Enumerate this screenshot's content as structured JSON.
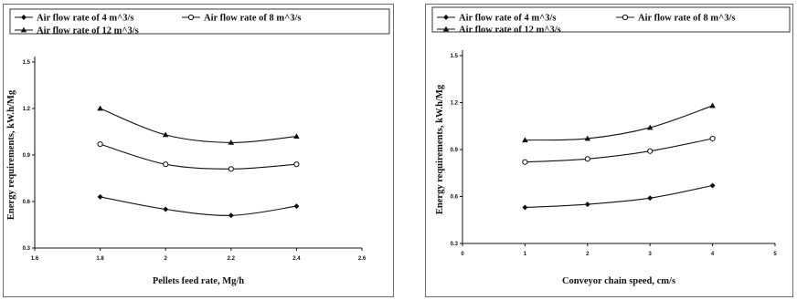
{
  "chart_data": [
    {
      "type": "line",
      "title": "",
      "xlabel": "Pellets feed rate, Mg/h",
      "ylabel": "Energy requirements, kW.h/Mg",
      "xlim": [
        1.6,
        2.6
      ],
      "ylim": [
        0.3,
        1.5
      ],
      "xticks": [
        "1.6",
        "1.8",
        "2",
        "2.2",
        "2.4",
        "2.6"
      ],
      "yticks": [
        "0.3",
        "0.6",
        "0.9",
        "1.2",
        "1.5"
      ],
      "x": [
        1.8,
        2.0,
        2.2,
        2.4
      ],
      "legend_position": "top",
      "grid": false,
      "series": [
        {
          "name": "Air flow rate of 4 m^3/s",
          "marker": "diamond",
          "values": [
            0.63,
            0.55,
            0.51,
            0.57
          ]
        },
        {
          "name": "Air flow rate of 8 m^3/s",
          "marker": "circle-open",
          "values": [
            0.97,
            0.84,
            0.81,
            0.84
          ]
        },
        {
          "name": "Air flow rate of 12 m^3/s",
          "marker": "triangle",
          "values": [
            1.2,
            1.03,
            0.98,
            1.02
          ]
        }
      ]
    },
    {
      "type": "line",
      "title": "",
      "xlabel": "Conveyor chain speed, cm/s",
      "ylabel": "Energy requirements, kW.h/Mg",
      "xlim": [
        0,
        5
      ],
      "ylim": [
        0.3,
        1.5
      ],
      "xticks": [
        "0",
        "1",
        "2",
        "3",
        "4",
        "5"
      ],
      "yticks": [
        "0.3",
        "0.6",
        "0.9",
        "1.2",
        "1.5"
      ],
      "x": [
        1,
        2,
        3,
        4
      ],
      "legend_position": "top",
      "grid": false,
      "series": [
        {
          "name": "Air flow rate of 4 m^3/s",
          "marker": "diamond",
          "values": [
            0.53,
            0.55,
            0.59,
            0.67
          ]
        },
        {
          "name": "Air flow rate of 8 m^3/s",
          "marker": "circle-open",
          "values": [
            0.82,
            0.84,
            0.89,
            0.97
          ]
        },
        {
          "name": "Air flow rate of 12 m^3/s",
          "marker": "triangle",
          "values": [
            0.96,
            0.97,
            1.04,
            1.18
          ]
        }
      ]
    }
  ]
}
